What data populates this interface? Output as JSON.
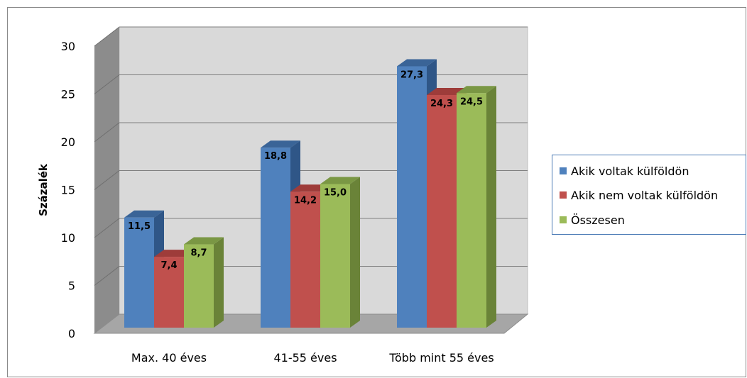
{
  "chart_data": {
    "type": "bar",
    "categories": [
      "Max. 40 éves",
      "41-55 éves",
      "Több mint 55 éves"
    ],
    "series": [
      {
        "name": "Akik voltak külföldön",
        "values": [
          11.5,
          18.8,
          27.3
        ],
        "labels": [
          "11,5",
          "18,8",
          "27,3"
        ],
        "color": "#4f81bd",
        "side": "#2f5687",
        "top": "#3a6497"
      },
      {
        "name": "Akik nem voltak külföldön",
        "values": [
          7.4,
          14.2,
          24.3
        ],
        "labels": [
          "7,4",
          "14,2",
          "24,3"
        ],
        "color": "#c0504d",
        "side": "#8a3331",
        "top": "#9e3c3a"
      },
      {
        "name": "Összesen",
        "values": [
          8.7,
          15.0,
          24.5
        ],
        "labels": [
          "8,7",
          "15,0",
          "24,5"
        ],
        "color": "#9bbb59",
        "side": "#6a8338",
        "top": "#7a9744"
      }
    ],
    "ylabel": "Százalék",
    "xlabel": "",
    "yticks": [
      "0",
      "5",
      "10",
      "15",
      "20",
      "25",
      "30"
    ],
    "ylim": [
      0,
      30
    ],
    "grid": true,
    "legend_position": "right",
    "style": "3d-clustered-column"
  }
}
